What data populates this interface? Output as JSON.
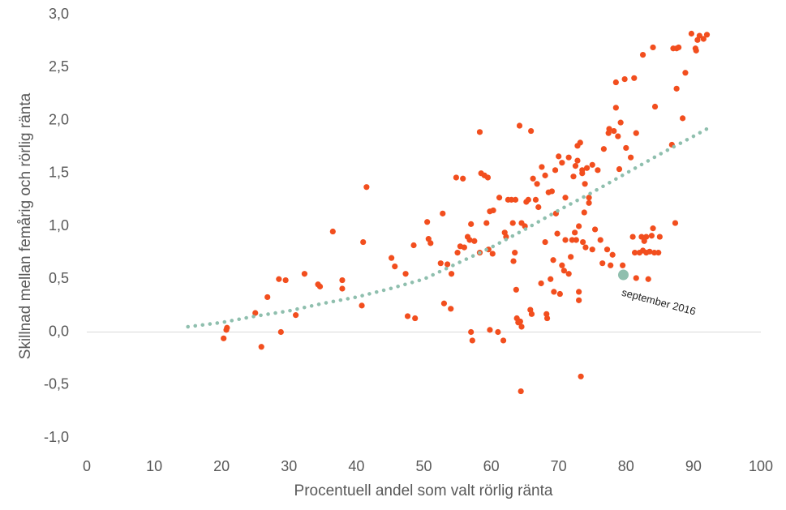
{
  "chart_data": {
    "type": "scatter",
    "xlabel": "Procentuell andel som valt rörlig ränta",
    "ylabel": "Skillnad mellan femårig och rörlig ränta",
    "xlim": [
      0,
      100
    ],
    "xticks": [
      0,
      10,
      20,
      30,
      40,
      50,
      60,
      70,
      80,
      90,
      100
    ],
    "ylim": [
      -1,
      3
    ],
    "yticks": [
      {
        "value": 3,
        "label": "3,0"
      },
      {
        "value": 2.5,
        "label": "2,5"
      },
      {
        "value": 2,
        "label": "2,0"
      },
      {
        "value": 1.5,
        "label": "1,5"
      },
      {
        "value": 1,
        "label": "1,0"
      },
      {
        "value": 0.5,
        "label": "0,5"
      },
      {
        "value": 0,
        "label": "0,0"
      },
      {
        "value": -0.5,
        "label": "-0,5"
      },
      {
        "value": -1,
        "label": "-1,0"
      }
    ],
    "series": [
      {
        "color": "#f24e1e",
        "style": "points",
        "x": [
          20.3,
          20.7,
          20.8,
          25,
          25.9,
          26.8,
          28.5,
          28.8,
          29.5,
          31,
          32.3,
          34.3,
          34.6,
          36.5,
          37.9,
          37.9,
          40.8,
          41,
          41.5,
          45.2,
          45.7,
          47.3,
          47.6,
          48.5,
          48.7,
          50.5,
          50.7,
          51,
          52.5,
          52.8,
          53,
          53.5,
          54,
          54.1,
          54.8,
          55,
          55.4,
          55.8,
          56,
          56.5,
          56.8,
          57,
          57,
          57.2,
          57.5,
          58.3,
          58.3,
          58.5,
          59,
          59.5,
          59.3,
          59.6,
          59.8,
          59.8,
          60.2,
          60.3,
          61,
          61.2,
          61.8,
          62,
          62.2,
          62.5,
          63,
          63.2,
          63.3,
          63.5,
          63.6,
          63.7,
          63.8,
          64,
          64.2,
          64.3,
          64.4,
          64.5,
          64.5,
          65,
          65.2,
          65.5,
          65.8,
          65.9,
          66,
          66.2,
          66.6,
          66.8,
          67,
          67.4,
          67.5,
          68,
          68,
          68.2,
          68.3,
          68.5,
          68.8,
          69,
          69.2,
          69.3,
          69.5,
          69.6,
          69.8,
          70,
          70.2,
          70.5,
          70.5,
          70.8,
          71,
          71,
          71.5,
          71.5,
          71.8,
          72,
          72.2,
          72.4,
          72.5,
          72.6,
          72.8,
          72.8,
          73,
          73,
          73,
          73.2,
          73.3,
          73.5,
          73.5,
          73.6,
          73.8,
          73.9,
          74,
          74.2,
          74.5,
          74.5,
          75,
          75,
          75.4,
          75.8,
          76.2,
          76.5,
          76.7,
          77.2,
          77.4,
          77.5,
          77.7,
          78,
          78.2,
          78.5,
          78.5,
          78.8,
          79,
          79.2,
          79.5,
          79.8,
          80,
          80.7,
          81,
          81.2,
          81.3,
          81.5,
          81.5,
          82,
          82.3,
          82.5,
          82.5,
          82.7,
          83,
          83,
          83.3,
          83.5,
          83.8,
          84,
          84,
          84.2,
          84.3,
          84.8,
          85,
          86.8,
          87,
          87.3,
          87.5,
          87.5,
          87.8,
          88.4,
          88.8,
          89.7,
          90.3,
          90.4,
          90.6,
          90.9,
          91.5,
          92
        ],
        "values": [
          -0.06,
          0.02,
          0.04,
          0.18,
          -0.14,
          0.33,
          0.5,
          0,
          0.49,
          0.16,
          0.55,
          0.45,
          0.43,
          0.95,
          0.49,
          0.41,
          0.25,
          0.85,
          1.37,
          0.7,
          0.62,
          0.55,
          0.15,
          0.82,
          0.13,
          1.04,
          0.88,
          0.84,
          0.65,
          1.12,
          0.27,
          0.64,
          0.22,
          0.55,
          1.46,
          0.75,
          0.81,
          1.45,
          0.8,
          0.9,
          0.87,
          1.02,
          0,
          -0.08,
          0.86,
          0.75,
          1.89,
          1.5,
          1.48,
          1.46,
          1.03,
          0.78,
          1.14,
          0.02,
          0.74,
          1.15,
          0,
          1.27,
          -0.08,
          0.94,
          0.9,
          1.25,
          1.25,
          1.03,
          0.67,
          0.75,
          1.25,
          0.4,
          0.13,
          0.09,
          1.95,
          0.1,
          -0.56,
          0.05,
          1.03,
          1,
          1.23,
          1.25,
          0.21,
          1.9,
          0.17,
          1.45,
          1.25,
          1.4,
          1.18,
          0.46,
          1.56,
          1.48,
          0.85,
          0.17,
          0.13,
          1.32,
          0.5,
          1.33,
          0.68,
          0.38,
          1.53,
          1.12,
          0.93,
          1.66,
          0.36,
          1.6,
          0.63,
          0.58,
          0.87,
          1.27,
          1.65,
          0.55,
          0.71,
          0.87,
          1.47,
          0.94,
          1.57,
          0.87,
          1.76,
          1.62,
          0.3,
          0.38,
          1,
          1.79,
          -0.42,
          1.5,
          1.53,
          0.85,
          1.13,
          1.4,
          0.8,
          1.55,
          1.27,
          1.22,
          1.58,
          0.78,
          0.97,
          1.53,
          0.87,
          0.65,
          1.73,
          0.78,
          1.88,
          1.92,
          0.63,
          0.73,
          1.9,
          2.12,
          2.36,
          1.85,
          1.54,
          1.98,
          0.63,
          2.39,
          1.74,
          1.65,
          0.9,
          2.4,
          0.75,
          1.88,
          0.51,
          0.75,
          0.9,
          0.77,
          2.62,
          0.86,
          0.75,
          0.9,
          0.5,
          0.76,
          0.91,
          0.98,
          2.69,
          0.75,
          2.13,
          0.75,
          0.9,
          1.77,
          2.68,
          1.03,
          2.68,
          2.3,
          2.69,
          2.02,
          2.45,
          2.82,
          2.68,
          2.66,
          2.76,
          2.8,
          2.77,
          2.81
        ]
      },
      {
        "color": "#8fbfae",
        "style": "dotted",
        "x": [
          15,
          20,
          25,
          30,
          35,
          40,
          45,
          50,
          55,
          60,
          65,
          70,
          75,
          80,
          85,
          90,
          92
        ],
        "values": [
          0.05,
          0.09,
          0.15,
          0.2,
          0.27,
          0.33,
          0.41,
          0.5,
          0.65,
          0.8,
          0.97,
          1.15,
          1.32,
          1.5,
          1.68,
          1.85,
          1.92
        ]
      },
      {
        "color": "#8fbfae",
        "style": "highlight",
        "label": "september 2016",
        "x": [
          79.6
        ],
        "values": [
          0.54
        ]
      }
    ]
  }
}
